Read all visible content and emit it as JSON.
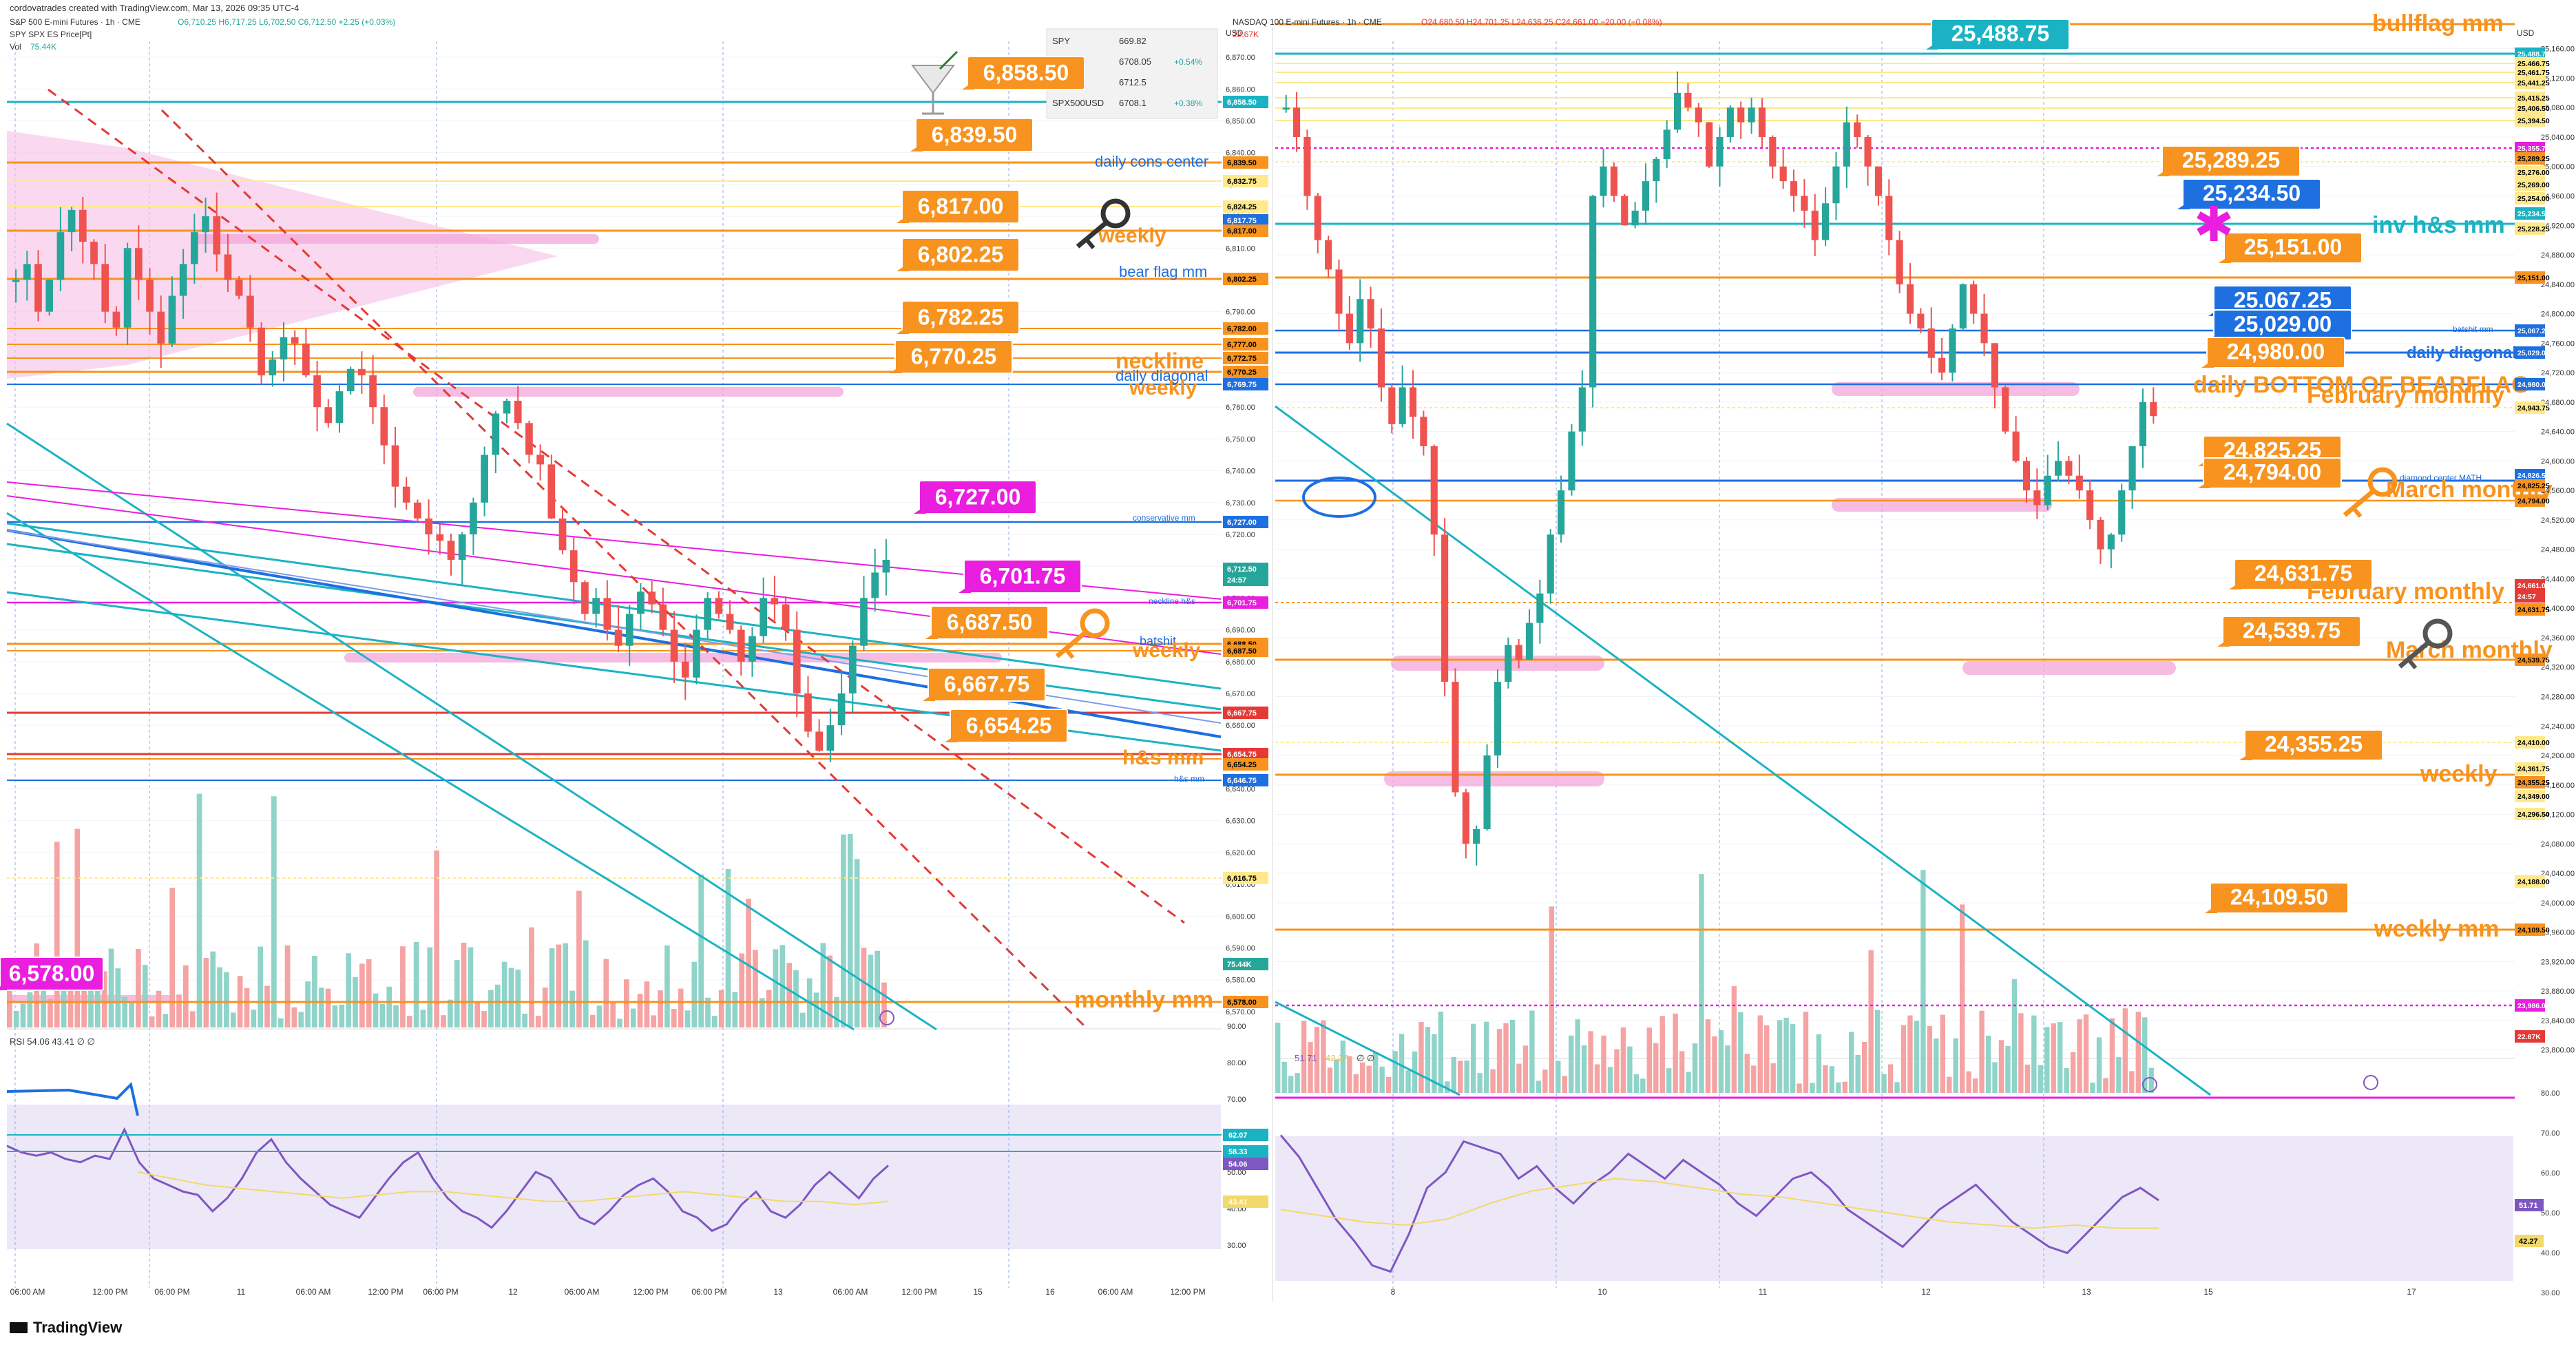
{
  "header": {
    "created_by": "cordovatrades created with TradingView.com, Mar 13, 2026 09:35 UTC-4",
    "footer_logo": "TradingView"
  },
  "colors": {
    "orange": "#f7931e",
    "blue": "#1e6fe0",
    "cyan": "#1bb3c4",
    "magenta": "#e91ede",
    "pink_zone": "#f6bfe6",
    "red": "#e53935",
    "green_candle": "#26a69a",
    "red_candle": "#ef5350",
    "rsi_line": "#7e57c2",
    "rsi_ma": "#f2d96b",
    "rsi_band": "#ece8f8"
  },
  "left_panel": {
    "legend": {
      "title": "S&P 500 E-mini Futures · 1h · CME",
      "ohlc": "O6,710.25 H6,717.25 L6,702.50 C6,712.50 +2.25 (+0.03%)",
      "line2": "SPY SPX ES Price[Pt]",
      "vol_label": "Vol",
      "vol_value": "75.44K"
    },
    "quote_table": [
      {
        "sym": "SPY",
        "val": "669.82",
        "chg": ""
      },
      {
        "sym": "",
        "val": "6708.05",
        "chg": "+0.54%"
      },
      {
        "sym": "",
        "val": "6712.5",
        "chg": ""
      },
      {
        "sym": "SPX500USD",
        "val": "6708.1",
        "chg": "+0.38%"
      }
    ],
    "axis_ticks": [
      "6,870.00",
      "6,860.00",
      "6,850.00",
      "6,840.00",
      "6,830.00",
      "6,820.00",
      "6,810.00",
      "6,800.00",
      "6,790.00",
      "6,780.00",
      "6,770.00",
      "6,760.00",
      "6,750.00",
      "6,740.00",
      "6,730.00",
      "6,720.00",
      "6,710.00",
      "6,700.00",
      "6,690.00",
      "6,680.00",
      "6,670.00",
      "6,660.00",
      "6,650.00",
      "6,640.00",
      "6,630.00",
      "6,620.00",
      "6,610.00",
      "6,600.00",
      "6,590.00",
      "6,580.00",
      "6,570.00"
    ],
    "axis_unit": "USD",
    "x_labels": [
      "06:00 AM",
      "12:00 PM",
      "06:00 PM",
      "11",
      "06:00 AM",
      "12:00 PM",
      "06:00 PM",
      "12",
      "06:00 AM",
      "12:00 PM",
      "06:00 PM",
      "13",
      "06:00 AM",
      "12:00 PM",
      "15",
      "16",
      "06:00 AM",
      "12:00 PM"
    ],
    "level_labels": [
      {
        "text": "6,858.50",
        "price": 6858.5,
        "bg": "#f7931e"
      },
      {
        "text": "6,839.50",
        "price": 6839.5,
        "bg": "#f7931e"
      },
      {
        "text": "6,817.00",
        "price": 6817.0,
        "bg": "#f7931e"
      },
      {
        "text": "6,802.25",
        "price": 6802.25,
        "bg": "#f7931e"
      },
      {
        "text": "6,782.25",
        "price": 6782.25,
        "bg": "#f7931e"
      },
      {
        "text": "6,770.25",
        "price": 6770.25,
        "bg": "#f7931e"
      },
      {
        "text": "6,727.00",
        "price": 6727.0,
        "bg": "#e91ede"
      },
      {
        "text": "6,701.75",
        "price": 6701.75,
        "bg": "#e91ede"
      },
      {
        "text": "6,687.50",
        "price": 6687.5,
        "bg": "#f7931e"
      },
      {
        "text": "6,667.75",
        "price": 6667.75,
        "bg": "#f7931e"
      },
      {
        "text": "6,654.25",
        "price": 6654.25,
        "bg": "#f7931e"
      },
      {
        "text": "6,578.00",
        "price": 6578.0,
        "bg": "#e91ede"
      }
    ],
    "line_notes": [
      {
        "text": "daily cons center",
        "color": "#1e6fe0"
      },
      {
        "text": "weekly",
        "color": "#f7931e"
      },
      {
        "text": "bear flag mm",
        "color": "#1e6fe0"
      },
      {
        "text": "neckline",
        "color": "#f7931e"
      },
      {
        "text": "daily diagonal",
        "color": "#1e6fe0"
      },
      {
        "text": "weekly",
        "color": "#f7931e"
      },
      {
        "text": "conservative mm",
        "color": "#1e6fe0"
      },
      {
        "text": "neckline h&s",
        "color": "#1e6fe0"
      },
      {
        "text": "batshit",
        "color": "#1e6fe0"
      },
      {
        "text": "weekly",
        "color": "#f7931e"
      },
      {
        "text": "h&s mm",
        "color": "#f7931e"
      },
      {
        "text": "h&s mm",
        "color": "#1e6fe0"
      },
      {
        "text": "monthly mm",
        "color": "#f7931e"
      }
    ],
    "axis_tags": [
      {
        "text": "6,858.50",
        "bg": "#1bb3c4",
        "fg": "#ffffff"
      },
      {
        "text": "6,839.50",
        "bg": "#f7931e",
        "fg": "#000000"
      },
      {
        "text": "6,832.75",
        "bg": "#ffe98a",
        "fg": "#000000"
      },
      {
        "text": "6,824.25",
        "bg": "#ffe98a",
        "fg": "#000000"
      },
      {
        "text": "6,817.75",
        "bg": "#1e6fe0",
        "fg": "#ffffff"
      },
      {
        "text": "6,817.00",
        "bg": "#f7931e",
        "fg": "#000000"
      },
      {
        "text": "6,802.25",
        "bg": "#f7931e",
        "fg": "#000000"
      },
      {
        "text": "6,782.00",
        "bg": "#f7931e",
        "fg": "#000000"
      },
      {
        "text": "6,777.00",
        "bg": "#f7931e",
        "fg": "#000000"
      },
      {
        "text": "6,772.75",
        "bg": "#f7931e",
        "fg": "#000000"
      },
      {
        "text": "6,770.25",
        "bg": "#f7931e",
        "fg": "#000000"
      },
      {
        "text": "6,769.75",
        "bg": "#1e6fe0",
        "fg": "#ffffff"
      },
      {
        "text": "6,727.00",
        "bg": "#1e6fe0",
        "fg": "#ffffff"
      },
      {
        "text": "6,712.50",
        "bg": "#26a69a",
        "fg": "#ffffff"
      },
      {
        "text": "24:57",
        "bg": "#26a69a",
        "fg": "#ffffff"
      },
      {
        "text": "6,701.75",
        "bg": "#e91ede",
        "fg": "#ffffff"
      },
      {
        "text": "6,688.50",
        "bg": "#f7931e",
        "fg": "#000000"
      },
      {
        "text": "6,687.50",
        "bg": "#f7931e",
        "fg": "#000000"
      },
      {
        "text": "6,667.75",
        "bg": "#e53935",
        "fg": "#ffffff"
      },
      {
        "text": "6,654.75",
        "bg": "#e53935",
        "fg": "#ffffff"
      },
      {
        "text": "6,654.25",
        "bg": "#f7931e",
        "fg": "#000000"
      },
      {
        "text": "6,646.75",
        "bg": "#1e6fe0",
        "fg": "#ffffff"
      },
      {
        "text": "6,616.75",
        "bg": "#ffe98a",
        "fg": "#000000"
      },
      {
        "text": "75.44K",
        "bg": "#26a69a",
        "fg": "#ffffff"
      },
      {
        "text": "6,578.00",
        "bg": "#f7931e",
        "fg": "#000000"
      }
    ],
    "rsi": {
      "legend": "RSI 54.06 43.41 ∅ ∅",
      "ticks": [
        "90.00",
        "80.00",
        "70.00",
        "60.00",
        "50.00",
        "40.00",
        "30.00"
      ],
      "tags": [
        {
          "text": "62.07",
          "bg": "#1bb3c4"
        },
        {
          "text": "58.33",
          "bg": "#1bb3c4"
        },
        {
          "text": "54.06",
          "bg": "#7e57c2"
        },
        {
          "text": "43.41",
          "bg": "#f2d96b"
        }
      ]
    }
  },
  "right_panel": {
    "legend": {
      "title": "NASDAQ 100 E-mini Futures · 1h · CME",
      "ohlc": "O24,680.50 H24,701.25 L24,636.25 C24,661.00 −20.00 (−0.08%)",
      "vol_value": "22.67K"
    },
    "axis_ticks": [
      "25,160.00",
      "25,120.00",
      "25,080.00",
      "25,040.00",
      "25,000.00",
      "24,960.00",
      "24,920.00",
      "24,880.00",
      "24,840.00",
      "24,800.00",
      "24,760.00",
      "24,720.00",
      "24,680.00",
      "24,640.00",
      "24,600.00",
      "24,560.00",
      "24,520.00",
      "24,480.00",
      "24,440.00",
      "24,400.00",
      "24,360.00",
      "24,320.00",
      "24,280.00",
      "24,240.00",
      "24,200.00",
      "24,160.00",
      "24,120.00",
      "24,080.00",
      "24,040.00",
      "24,000.00",
      "23,960.00",
      "23,920.00",
      "23,880.00",
      "23,840.00",
      "23,800.00"
    ],
    "axis_unit": "USD",
    "x_labels": [
      "8",
      "10",
      "11",
      "12",
      "13",
      "15",
      "17"
    ],
    "level_labels": [
      {
        "text": "25,488.75",
        "bg": "#1bb3c4"
      },
      {
        "text": "25,289.25",
        "bg": "#f7931e"
      },
      {
        "text": "25,234.50",
        "bg": "#1e6fe0"
      },
      {
        "text": "25,151.00",
        "bg": "#f7931e"
      },
      {
        "text": "25.067.25",
        "bg": "#1e6fe0"
      },
      {
        "text": "25,029.00",
        "bg": "#1e6fe0"
      },
      {
        "text": "24,980.00",
        "bg": "#f7931e"
      },
      {
        "text": "24,825.25",
        "bg": "#f7931e"
      },
      {
        "text": "24,794.00",
        "bg": "#f7931e"
      },
      {
        "text": "24,631.75",
        "bg": "#f7931e"
      },
      {
        "text": "24,539.75",
        "bg": "#f7931e"
      },
      {
        "text": "24,355.25",
        "bg": "#f7931e"
      },
      {
        "text": "24,109.50",
        "bg": "#f7931e"
      }
    ],
    "line_notes": [
      {
        "text": "bullflag mm",
        "color": "#f7931e"
      },
      {
        "text": "inv h&s mm",
        "color": "#1bb3c4"
      },
      {
        "text": "batshit mm",
        "color": "#1e6fe0"
      },
      {
        "text": "daily diagonal",
        "color": "#1e6fe0"
      },
      {
        "text": "daily BOTTOM OF BEARFLAG",
        "color": "#f7931e"
      },
      {
        "text": "February monthly",
        "color": "#f7931e"
      },
      {
        "text": "diamond center MATH",
        "color": "#1e6fe0"
      },
      {
        "text": "March monthly",
        "color": "#f7931e"
      },
      {
        "text": "February monthly",
        "color": "#f7931e"
      },
      {
        "text": "March monthly",
        "color": "#f7931e"
      },
      {
        "text": "weekly",
        "color": "#f7931e"
      },
      {
        "text": "weekly mm",
        "color": "#f7931e"
      }
    ],
    "axis_tags": [
      {
        "text": "25,488.75",
        "bg": "#1bb3c4",
        "fg": "#ffffff"
      },
      {
        "text": "25,466.75",
        "bg": "#ffe98a",
        "fg": "#000000"
      },
      {
        "text": "25,461.75",
        "bg": "#ffe98a",
        "fg": "#000000"
      },
      {
        "text": "25,441.25",
        "bg": "#ffe98a",
        "fg": "#000000"
      },
      {
        "text": "25,415.25",
        "bg": "#ffe98a",
        "fg": "#000000"
      },
      {
        "text": "25,406.50",
        "bg": "#ffe98a",
        "fg": "#000000"
      },
      {
        "text": "25,394.50",
        "bg": "#ffe98a",
        "fg": "#000000"
      },
      {
        "text": "25,355.75",
        "bg": "#e91ede",
        "fg": "#ffffff"
      },
      {
        "text": "25,289.25",
        "bg": "#f7931e",
        "fg": "#000000"
      },
      {
        "text": "25,276.00",
        "bg": "#ffe98a",
        "fg": "#000000"
      },
      {
        "text": "25,269.00",
        "bg": "#ffe98a",
        "fg": "#000000"
      },
      {
        "text": "25,254.00",
        "bg": "#ffe98a",
        "fg": "#000000"
      },
      {
        "text": "25,234.50",
        "bg": "#1bb3c4",
        "fg": "#ffffff"
      },
      {
        "text": "25,228.25",
        "bg": "#ffe98a",
        "fg": "#000000"
      },
      {
        "text": "25,151.00",
        "bg": "#f7931e",
        "fg": "#000000"
      },
      {
        "text": "25,067.25",
        "bg": "#1e6fe0",
        "fg": "#ffffff"
      },
      {
        "text": "25,029.00",
        "bg": "#1e6fe0",
        "fg": "#ffffff"
      },
      {
        "text": "24,980.00",
        "bg": "#1e6fe0",
        "fg": "#ffffff"
      },
      {
        "text": "24,943.75",
        "bg": "#ffe98a",
        "fg": "#000000"
      },
      {
        "text": "24,826.50",
        "bg": "#1e6fe0",
        "fg": "#ffffff"
      },
      {
        "text": "24,825.25",
        "bg": "#f7931e",
        "fg": "#000000"
      },
      {
        "text": "24,794.00",
        "bg": "#f7931e",
        "fg": "#000000"
      },
      {
        "text": "24,661.00",
        "bg": "#e53935",
        "fg": "#ffffff"
      },
      {
        "text": "24:57",
        "bg": "#e53935",
        "fg": "#ffffff"
      },
      {
        "text": "24,631.75",
        "bg": "#f7931e",
        "fg": "#000000"
      },
      {
        "text": "24,539.75",
        "bg": "#f7931e",
        "fg": "#000000"
      },
      {
        "text": "24,410.00",
        "bg": "#ffe98a",
        "fg": "#000000"
      },
      {
        "text": "24,361.75",
        "bg": "#ffe98a",
        "fg": "#000000"
      },
      {
        "text": "24,355.25",
        "bg": "#f7931e",
        "fg": "#000000"
      },
      {
        "text": "24,349.00",
        "bg": "#ffe98a",
        "fg": "#000000"
      },
      {
        "text": "24,296.50",
        "bg": "#ffe98a",
        "fg": "#000000"
      },
      {
        "text": "24,188.00",
        "bg": "#ffe98a",
        "fg": "#000000"
      },
      {
        "text": "24,109.50",
        "bg": "#f7931e",
        "fg": "#000000"
      },
      {
        "text": "23,986.00",
        "bg": "#e91ede",
        "fg": "#ffffff"
      },
      {
        "text": "22.67K",
        "bg": "#e53935",
        "fg": "#ffffff"
      }
    ],
    "rsi": {
      "legend_a": "51.71",
      "legend_b": "42.27",
      "legend_c": "∅ ∅",
      "ticks": [
        "80.00",
        "70.00",
        "60.00",
        "50.00",
        "40.00",
        "30.00"
      ],
      "tags": [
        {
          "text": "51.71",
          "bg": "#7e57c2"
        },
        {
          "text": "42.27",
          "bg": "#f2d96b"
        }
      ]
    }
  },
  "chart_data": [
    {
      "type": "candlestick",
      "symbol": "ES1! (S&P 500 E-mini Futures, 1h, CME)",
      "y_unit": "USD",
      "ylim": [
        6565,
        6875
      ],
      "approx_close_path": [
        6800,
        6805,
        6790,
        6800,
        6815,
        6822,
        6812,
        6805,
        6790,
        6785,
        6810,
        6800,
        6790,
        6780,
        6795,
        6805,
        6815,
        6820,
        6808,
        6800,
        6795,
        6785,
        6770,
        6775,
        6782,
        6780,
        6770,
        6760,
        6755,
        6765,
        6772,
        6770,
        6760,
        6748,
        6735,
        6730,
        6725,
        6720,
        6718,
        6712,
        6720,
        6730,
        6745,
        6758,
        6762,
        6755,
        6745,
        6742,
        6725,
        6715,
        6705,
        6695,
        6700,
        6690,
        6685,
        6695,
        6702,
        6698,
        6690,
        6680,
        6675,
        6690,
        6700,
        6695,
        6690,
        6680,
        6688,
        6700,
        6698,
        6690,
        6670,
        6658,
        6652,
        6660,
        6670,
        6685,
        6700,
        6708,
        6712
      ],
      "levels": [
        6858.5,
        6839.5,
        6817,
        6802.25,
        6782.25,
        6770.25,
        6727,
        6701.75,
        6687.5,
        6667.75,
        6654.25,
        6578
      ],
      "rsi_last": 54.06,
      "rsi_ma": 43.41,
      "volume_last": "75.44K"
    },
    {
      "type": "candlestick",
      "symbol": "NQ1! (NASDAQ 100 E-mini Futures, 1h, CME)",
      "y_unit": "USD",
      "ylim": [
        23795,
        25170
      ],
      "approx_close_path": [
        25080,
        25040,
        24960,
        24900,
        24860,
        24800,
        24760,
        24820,
        24780,
        24700,
        24650,
        24700,
        24660,
        24620,
        24500,
        24300,
        24150,
        24080,
        24100,
        24200,
        24300,
        24350,
        24330,
        24380,
        24420,
        24500,
        24560,
        24640,
        24700,
        24960,
        25000,
        24960,
        24920,
        24940,
        24980,
        25010,
        25050,
        25100,
        25080,
        25060,
        25000,
        25040,
        25080,
        25060,
        25080,
        25040,
        25000,
        24980,
        24960,
        24940,
        24900,
        24950,
        25000,
        25060,
        25040,
        25000,
        24960,
        24900,
        24840,
        24800,
        24780,
        24740,
        24720,
        24780,
        24840,
        24800,
        24760,
        24700,
        24640,
        24600,
        24560,
        24540,
        24580,
        24600,
        24580,
        24560,
        24520,
        24480,
        24500,
        24560,
        24620,
        24680,
        24661
      ],
      "levels": [
        25488.75,
        25289.25,
        25234.5,
        25151,
        25067.25,
        25029,
        24980,
        24825.25,
        24794,
        24631.75,
        24539.75,
        24355.25,
        24109.5
      ],
      "rsi_last": 51.71,
      "rsi_ma": 42.27,
      "volume_last": "22.67K"
    }
  ]
}
